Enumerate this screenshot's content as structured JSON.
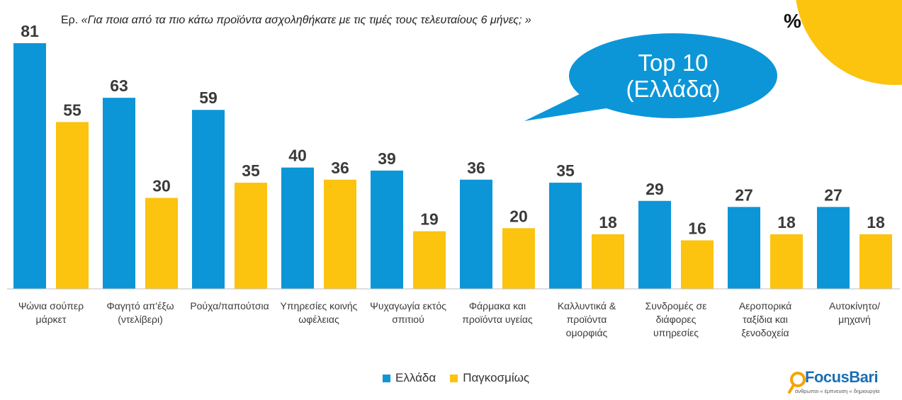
{
  "question": {
    "prefix": "Ερ.",
    "text": "«Για ποια από τα πιο κάτω προϊόντα ασχοληθήκατε με τις τιμές τους τελευταίους 6 μήνες; »"
  },
  "unit": "%",
  "callout": {
    "line1": "Top 10",
    "line2": "(Ελλάδα)"
  },
  "brand": {
    "name": "FocusBari",
    "tagline": "άνθρωποι « έμπνευση « δημιουργία"
  },
  "colors": {
    "greece": "#0c96d8",
    "global": "#fcc30f",
    "accent_sun": "#fcc30f",
    "callout": "#0c96d8"
  },
  "chart_data": {
    "type": "bar",
    "categories": [
      [
        "Ψώνια σούπερ",
        "μάρκετ"
      ],
      [
        "Φαγητό απ'έξω",
        "(ντελίβερι)"
      ],
      [
        "Ρούχα/παπούτσια"
      ],
      [
        "Υπηρεσίες κοινής",
        "ωφέλειας"
      ],
      [
        "Ψυχαγωγία εκτός",
        "σπιτιού"
      ],
      [
        "Φάρμακα και",
        "προϊόντα υγείας"
      ],
      [
        "Καλλυντικά &",
        "προϊόντα",
        "ομορφιάς"
      ],
      [
        "Συνδρομές σε",
        "διάφορες",
        "υπηρεσίες"
      ],
      [
        "Αεροπορικά",
        "ταξίδια και",
        "ξενοδοχεία"
      ],
      [
        "Αυτοκίνητο/",
        "μηχανή"
      ]
    ],
    "series": [
      {
        "name": "Ελλάδα",
        "values": [
          81,
          63,
          59,
          40,
          39,
          36,
          35,
          29,
          27,
          27
        ]
      },
      {
        "name": "Παγκοσμίως",
        "values": [
          55,
          30,
          35,
          36,
          19,
          20,
          18,
          16,
          18,
          18
        ]
      }
    ],
    "ylim": [
      0,
      81
    ],
    "legend_position": "bottom"
  }
}
